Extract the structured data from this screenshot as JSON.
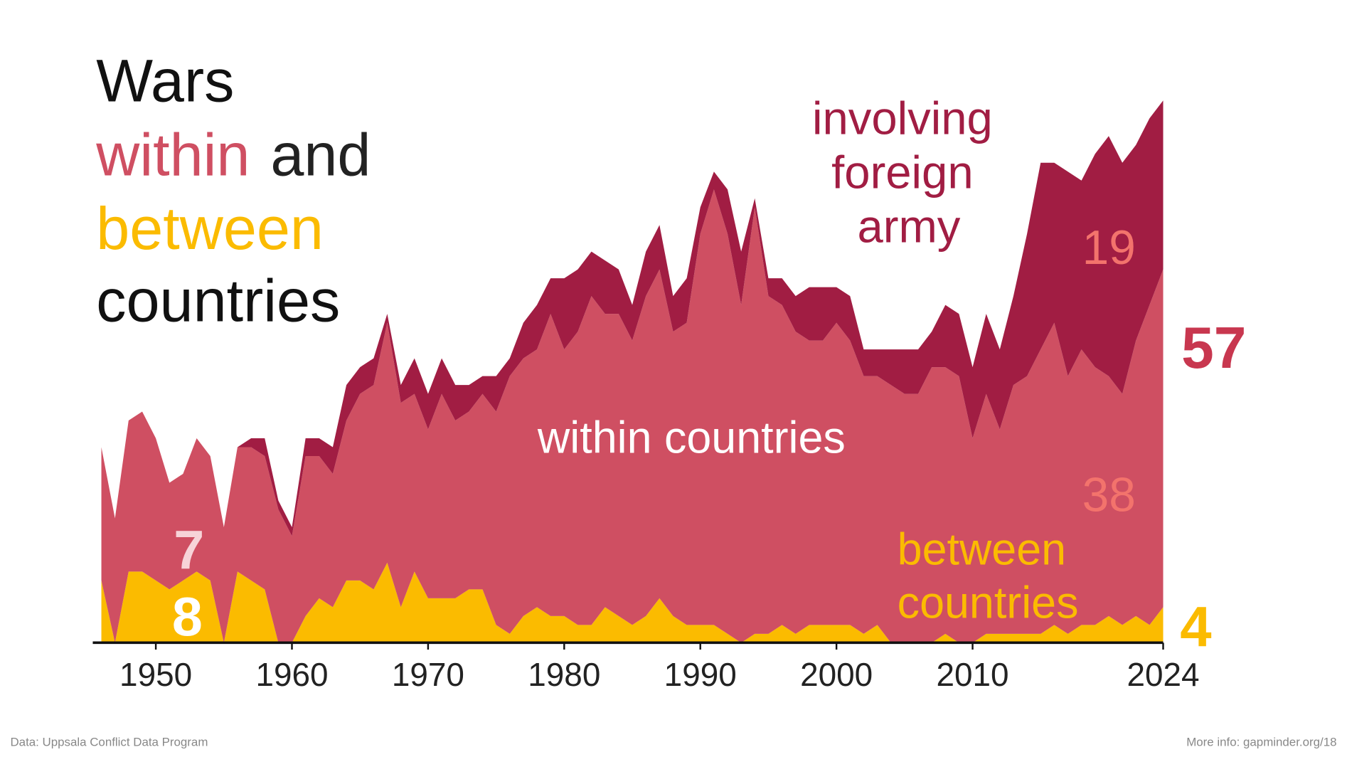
{
  "chart_data": {
    "type": "stacked_area",
    "title": [
      [
        {
          "text": "Wars",
          "color": "#111111"
        }
      ],
      [
        {
          "text": "within",
          "color": "#cf4f62"
        },
        {
          "text": "and",
          "color": "#222222"
        }
      ],
      [
        {
          "text": "between",
          "color": "#fbbb00"
        }
      ],
      [
        {
          "text": "countries",
          "color": "#111111"
        }
      ]
    ],
    "x": [
      1946,
      1947,
      1948,
      1949,
      1950,
      1951,
      1952,
      1953,
      1954,
      1955,
      1956,
      1957,
      1958,
      1959,
      1960,
      1961,
      1962,
      1963,
      1964,
      1965,
      1966,
      1967,
      1968,
      1969,
      1970,
      1971,
      1972,
      1973,
      1974,
      1975,
      1976,
      1977,
      1978,
      1979,
      1980,
      1981,
      1982,
      1983,
      1984,
      1985,
      1986,
      1987,
      1988,
      1989,
      1990,
      1991,
      1992,
      1993,
      1994,
      1995,
      1996,
      1997,
      1998,
      1999,
      2000,
      2001,
      2002,
      2003,
      2004,
      2005,
      2006,
      2007,
      2008,
      2009,
      2010,
      2011,
      2012,
      2013,
      2014,
      2015,
      2016,
      2017,
      2018,
      2019,
      2020,
      2021,
      2022,
      2023,
      2024
    ],
    "series": [
      {
        "name": "between countries",
        "color": "#fbbb00",
        "label_color": "#fbbb00",
        "values": [
          7,
          0,
          8,
          8,
          7,
          6,
          7,
          8,
          7,
          0,
          8,
          7,
          6,
          0,
          0,
          3,
          5,
          4,
          7,
          7,
          6,
          9,
          4,
          8,
          5,
          5,
          5,
          6,
          6,
          2,
          1,
          3,
          4,
          3,
          3,
          2,
          2,
          4,
          3,
          2,
          3,
          5,
          3,
          2,
          2,
          2,
          1,
          0,
          1,
          1,
          2,
          1,
          2,
          2,
          2,
          2,
          1,
          2,
          0,
          0,
          0,
          0,
          1,
          0,
          0,
          1,
          1,
          1,
          1,
          1,
          2,
          1,
          2,
          2,
          3,
          2,
          3,
          2,
          4
        ]
      },
      {
        "name": "within countries",
        "color": "#cf4f62",
        "label_color": "#f3736c",
        "values": [
          15,
          14,
          17,
          18,
          16,
          12,
          12,
          15,
          14,
          13,
          14,
          15,
          15,
          15,
          12,
          18,
          16,
          15,
          18,
          21,
          23,
          27,
          23,
          20,
          19,
          23,
          20,
          20,
          22,
          24,
          29,
          29,
          29,
          34,
          30,
          33,
          37,
          33,
          34,
          32,
          36,
          37,
          32,
          34,
          44,
          49,
          45,
          38,
          48,
          38,
          36,
          34,
          32,
          32,
          34,
          32,
          29,
          28,
          29,
          28,
          28,
          31,
          30,
          30,
          23,
          27,
          23,
          28,
          29,
          32,
          34,
          29,
          31,
          29,
          27,
          26,
          31,
          36,
          38
        ]
      },
      {
        "name": "involving foreign army",
        "color": "#a11d43",
        "label_color": "#f3736c",
        "values": [
          0,
          0,
          0,
          0,
          0,
          0,
          0,
          0,
          0,
          0,
          0,
          1,
          2,
          1,
          1,
          2,
          2,
          3,
          4,
          3,
          3,
          1,
          2,
          4,
          4,
          4,
          4,
          3,
          2,
          4,
          2,
          4,
          5,
          4,
          8,
          7,
          5,
          6,
          5,
          4,
          5,
          5,
          4,
          5,
          3,
          2,
          5,
          6,
          1,
          2,
          3,
          4,
          6,
          6,
          4,
          5,
          3,
          3,
          4,
          5,
          5,
          4,
          7,
          7,
          8,
          9,
          9,
          10,
          16,
          21,
          18,
          23,
          19,
          24,
          27,
          26,
          22,
          21,
          19
        ]
      }
    ],
    "xlim": [
      1946,
      2024
    ],
    "ylim": [
      0,
      61
    ],
    "xticks": [
      1950,
      1960,
      1970,
      1980,
      1990,
      2000,
      2010,
      2024
    ],
    "annotations": [
      57,
      7,
      8
    ],
    "source": "Data: Uppsala Conflict Data Program",
    "more_info": "More info: gapminder.org/18"
  }
}
